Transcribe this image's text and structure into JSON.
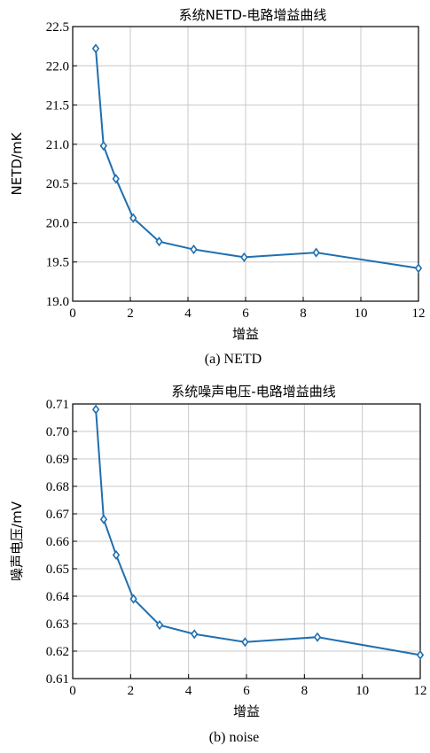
{
  "chart_data": [
    {
      "type": "line",
      "title": "系统NETD-电路增益曲线",
      "xlabel": "增益",
      "ylabel": "NETD/mK",
      "caption": "(a) NETD",
      "xlim": [
        0,
        12
      ],
      "ylim": [
        19.0,
        22.5
      ],
      "xticks": [
        0,
        2,
        4,
        6,
        8,
        10,
        12
      ],
      "yticks": [
        19.0,
        19.5,
        20.0,
        20.5,
        21.0,
        21.5,
        22.0,
        22.5
      ],
      "ytick_decimals": 1,
      "grid": true,
      "color": "#1f6fb0",
      "series": [
        {
          "x": [
            0.8,
            1.07,
            1.5,
            2.1,
            3.0,
            4.2,
            5.95,
            8.45,
            12.0
          ],
          "values": [
            22.22,
            20.98,
            20.56,
            20.06,
            19.76,
            19.66,
            19.56,
            19.62,
            19.42
          ]
        }
      ]
    },
    {
      "type": "line",
      "title": "系统噪声电压-电路增益曲线",
      "xlabel": "增益",
      "ylabel": "噪声电压/mV",
      "caption": "(b) noise",
      "xlim": [
        0,
        12
      ],
      "ylim": [
        0.61,
        0.71
      ],
      "xticks": [
        0,
        2,
        4,
        6,
        8,
        10,
        12
      ],
      "yticks": [
        0.61,
        0.62,
        0.63,
        0.64,
        0.65,
        0.66,
        0.67,
        0.68,
        0.69,
        0.7,
        0.71
      ],
      "ytick_decimals": 2,
      "grid": true,
      "color": "#1f6fb0",
      "series": [
        {
          "x": [
            0.8,
            1.07,
            1.5,
            2.1,
            3.0,
            4.2,
            5.95,
            8.45,
            12.0
          ],
          "values": [
            0.708,
            0.668,
            0.655,
            0.639,
            0.6295,
            0.6262,
            0.6233,
            0.6251,
            0.6186
          ]
        }
      ]
    }
  ]
}
